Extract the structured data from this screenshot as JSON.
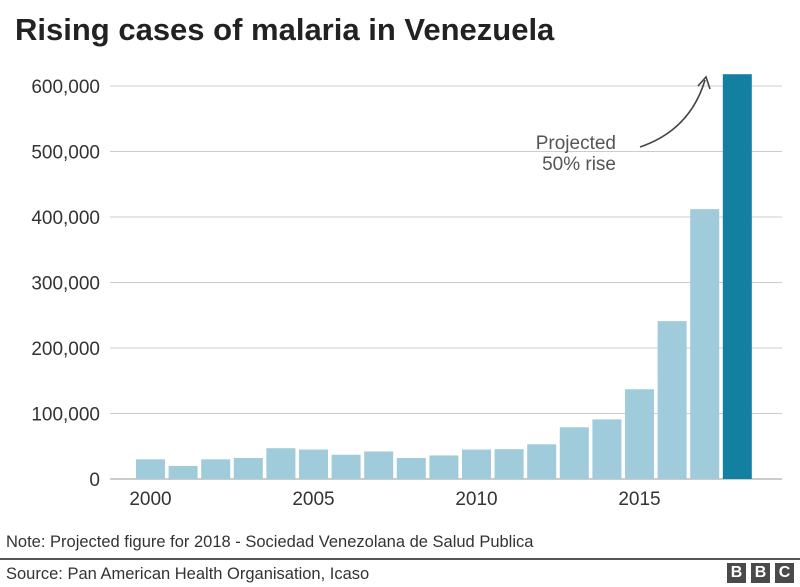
{
  "title": "Rising cases of malaria in Venezuela",
  "note": "Note: Projected figure for 2018 - Sociedad Venezolana de Salud Publica",
  "source": "Source: Pan American Health Organisation, Icaso",
  "logo": "BBC",
  "chart_data": {
    "type": "bar",
    "title": "Rising cases of malaria in Venezuela",
    "xlabel": "",
    "ylabel": "",
    "categories": [
      2000,
      2001,
      2002,
      2003,
      2004,
      2005,
      2006,
      2007,
      2008,
      2009,
      2010,
      2011,
      2012,
      2013,
      2014,
      2015,
      2016,
      2017,
      2018
    ],
    "values": [
      30000,
      20000,
      30000,
      32000,
      47000,
      45000,
      37000,
      42000,
      32000,
      36000,
      45000,
      45500,
      53000,
      79000,
      91000,
      137000,
      241000,
      412000,
      618000
    ],
    "projected": [
      false,
      false,
      false,
      false,
      false,
      false,
      false,
      false,
      false,
      false,
      false,
      false,
      false,
      false,
      false,
      false,
      false,
      false,
      true
    ],
    "ylim": [
      0,
      600000
    ],
    "yticks": [
      0,
      100000,
      200000,
      300000,
      400000,
      500000,
      600000
    ],
    "ytick_labels": [
      "0",
      "100,000",
      "200,000",
      "300,000",
      "400,000",
      "500,000",
      "600,000"
    ],
    "xticks": [
      2000,
      2005,
      2010,
      2015
    ],
    "xtick_labels": [
      "2000",
      "2005",
      "2010",
      "2015"
    ],
    "grid": true,
    "annotation": {
      "line1": "Projected",
      "line2": "50% rise"
    },
    "colors": {
      "actual": "#9fcbdb",
      "projected": "#1380a1",
      "grid": "#cccccc"
    }
  }
}
